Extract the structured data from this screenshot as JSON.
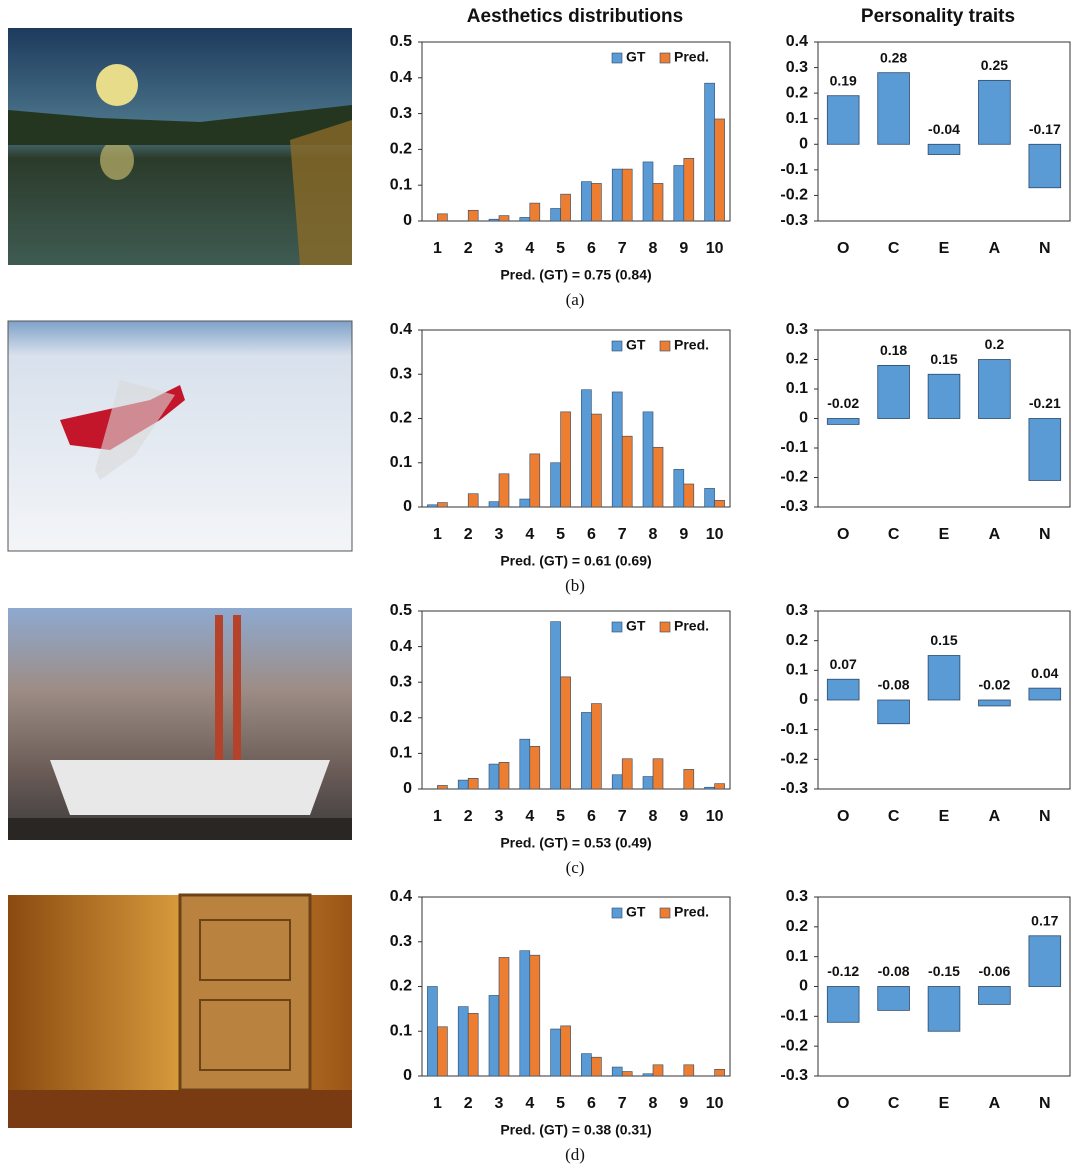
{
  "headers": [
    "Aesthetics distributions",
    "Personality traits"
  ],
  "panel_labels": [
    "(a)",
    "(b)",
    "(c)",
    "(d)"
  ],
  "chart_data": [
    {
      "type": "bar",
      "categories": [
        "1",
        "2",
        "3",
        "4",
        "5",
        "6",
        "7",
        "8",
        "9",
        "10"
      ],
      "x_label": "Pred. (GT) = 0.75 (0.84)",
      "legend": "upper right",
      "series": [
        {
          "name": "GT",
          "color": "#5b9bd5",
          "values": [
            0,
            0,
            0.005,
            0.01,
            0.035,
            0.11,
            0.145,
            0.165,
            0.155,
            0.385
          ]
        },
        {
          "name": "Pred.",
          "color": "#ed7d31",
          "values": [
            0.02,
            0.03,
            0.015,
            0.05,
            0.075,
            0.105,
            0.145,
            0.105,
            0.175,
            0.285
          ]
        }
      ],
      "ylim": [
        0,
        0.5
      ],
      "yticks": [
        0,
        0.1,
        0.2,
        0.3,
        0.4,
        0.5
      ]
    },
    {
      "type": "bar",
      "categories": [
        "O",
        "C",
        "E",
        "A",
        "N"
      ],
      "values": [
        0.19,
        0.28,
        -0.04,
        0.25,
        -0.17
      ],
      "color": "#5b9bd5",
      "data_labels": true,
      "ylim": [
        -0.3,
        0.4
      ],
      "yticks": [
        -0.3,
        -0.2,
        -0.1,
        0,
        0.1,
        0.2,
        0.3,
        0.4
      ]
    },
    {
      "type": "bar",
      "categories": [
        "1",
        "2",
        "3",
        "4",
        "5",
        "6",
        "7",
        "8",
        "9",
        "10"
      ],
      "x_label": "Pred. (GT) = 0.61 (0.69)",
      "legend": "upper right",
      "series": [
        {
          "name": "GT",
          "color": "#5b9bd5",
          "values": [
            0.005,
            0,
            0.012,
            0.018,
            0.1,
            0.265,
            0.26,
            0.215,
            0.085,
            0.042
          ]
        },
        {
          "name": "Pred.",
          "color": "#ed7d31",
          "values": [
            0.01,
            0.03,
            0.075,
            0.12,
            0.215,
            0.21,
            0.16,
            0.135,
            0.052,
            0.015
          ]
        }
      ],
      "ylim": [
        0,
        0.4
      ],
      "yticks": [
        0,
        0.1,
        0.2,
        0.3,
        0.4
      ]
    },
    {
      "type": "bar",
      "categories": [
        "O",
        "C",
        "E",
        "A",
        "N"
      ],
      "values": [
        -0.02,
        0.18,
        0.15,
        0.2,
        -0.21
      ],
      "color": "#5b9bd5",
      "data_labels": true,
      "ylim": [
        -0.3,
        0.3
      ],
      "yticks": [
        -0.3,
        -0.2,
        -0.1,
        0,
        0.1,
        0.2,
        0.3
      ]
    },
    {
      "type": "bar",
      "categories": [
        "1",
        "2",
        "3",
        "4",
        "5",
        "6",
        "7",
        "8",
        "9",
        "10"
      ],
      "x_label": "Pred. (GT) = 0.53 (0.49)",
      "legend": "upper right",
      "series": [
        {
          "name": "GT",
          "color": "#5b9bd5",
          "values": [
            0,
            0.025,
            0.07,
            0.14,
            0.47,
            0.215,
            0.04,
            0.035,
            0,
            0.005
          ]
        },
        {
          "name": "Pred.",
          "color": "#ed7d31",
          "values": [
            0.01,
            0.03,
            0.075,
            0.12,
            0.315,
            0.24,
            0.085,
            0.085,
            0.055,
            0.015
          ]
        }
      ],
      "ylim": [
        0,
        0.5
      ],
      "yticks": [
        0,
        0.1,
        0.2,
        0.3,
        0.4,
        0.5
      ]
    },
    {
      "type": "bar",
      "categories": [
        "O",
        "C",
        "E",
        "A",
        "N"
      ],
      "values": [
        0.07,
        -0.08,
        0.15,
        -0.02,
        0.04
      ],
      "color": "#5b9bd5",
      "data_labels": true,
      "ylim": [
        -0.3,
        0.3
      ],
      "yticks": [
        -0.3,
        -0.2,
        -0.1,
        0,
        0.1,
        0.2,
        0.3
      ]
    },
    {
      "type": "bar",
      "categories": [
        "1",
        "2",
        "3",
        "4",
        "5",
        "6",
        "7",
        "8",
        "9",
        "10"
      ],
      "x_label": "Pred. (GT) = 0.38 (0.31)",
      "legend": "upper right",
      "series": [
        {
          "name": "GT",
          "color": "#5b9bd5",
          "values": [
            0.2,
            0.155,
            0.18,
            0.28,
            0.105,
            0.05,
            0.02,
            0.005,
            0,
            0
          ]
        },
        {
          "name": "Pred.",
          "color": "#ed7d31",
          "values": [
            0.11,
            0.14,
            0.265,
            0.27,
            0.112,
            0.042,
            0.01,
            0.025,
            0.025,
            0.015
          ]
        }
      ],
      "ylim": [
        0,
        0.4
      ],
      "yticks": [
        0,
        0.1,
        0.2,
        0.3,
        0.4
      ]
    },
    {
      "type": "bar",
      "categories": [
        "O",
        "C",
        "E",
        "A",
        "N"
      ],
      "values": [
        -0.12,
        -0.08,
        -0.15,
        -0.06,
        0.17
      ],
      "color": "#5b9bd5",
      "data_labels": true,
      "ylim": [
        -0.3,
        0.3
      ],
      "yticks": [
        -0.3,
        -0.2,
        -0.1,
        0,
        0.1,
        0.2,
        0.3
      ]
    }
  ]
}
